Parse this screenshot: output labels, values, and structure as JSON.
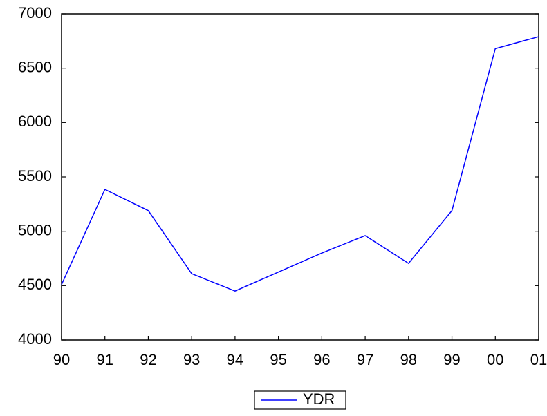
{
  "chart_data": {
    "type": "line",
    "categories": [
      "90",
      "91",
      "92",
      "93",
      "94",
      "95",
      "96",
      "97",
      "98",
      "99",
      "00",
      "01"
    ],
    "series": [
      {
        "name": "YDR",
        "color": "#0000ff",
        "values": [
          4510,
          5385,
          5190,
          4610,
          4450,
          4625,
          4800,
          4960,
          4705,
          5190,
          6680,
          6790
        ]
      }
    ],
    "ylim": [
      4000,
      7000
    ],
    "yticks": [
      4000,
      4500,
      5000,
      5500,
      6000,
      6500,
      7000
    ],
    "grid": false,
    "legend": "bottom"
  }
}
